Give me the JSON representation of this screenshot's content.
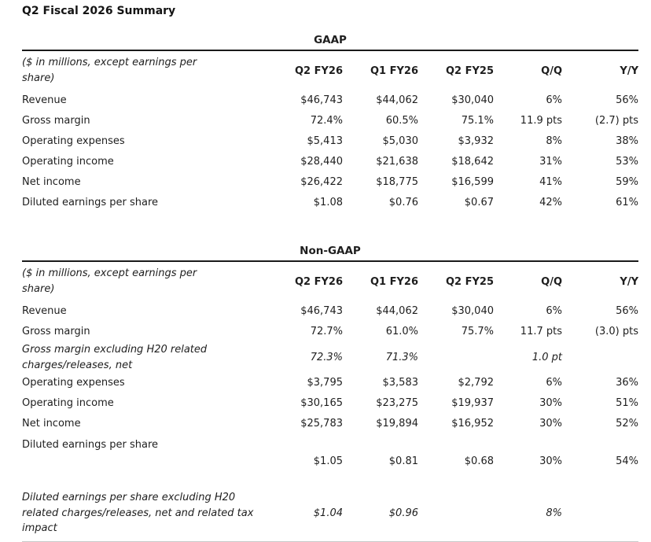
{
  "page": {
    "title": "Q2 Fiscal 2026 Summary"
  },
  "colors": {
    "text": "#1e1e1e",
    "rule": "#1a1a1a",
    "bottom_rule": "#c9c9c9"
  },
  "tables": [
    {
      "title": "GAAP",
      "note": "($ in millions, except earnings per share)",
      "columns": [
        "Q2 FY26",
        "Q1 FY26",
        "Q2 FY25",
        "Q/Q",
        "Y/Y"
      ],
      "rows": [
        {
          "label": "Revenue",
          "values": [
            "$46,743",
            "$44,062",
            "$30,040",
            "6%",
            "56%"
          ],
          "style": "normal"
        },
        {
          "label": "Gross margin",
          "values": [
            "72.4%",
            "60.5%",
            "75.1%",
            "11.9 pts",
            "(2.7) pts"
          ],
          "style": "normal"
        },
        {
          "label": "Operating expenses",
          "values": [
            "$5,413",
            "$5,030",
            "$3,932",
            "8%",
            "38%"
          ],
          "style": "normal"
        },
        {
          "label": "Operating income",
          "values": [
            "$28,440",
            "$21,638",
            "$18,642",
            "31%",
            "53%"
          ],
          "style": "normal"
        },
        {
          "label": "Net income",
          "values": [
            "$26,422",
            "$18,775",
            "$16,599",
            "41%",
            "59%"
          ],
          "style": "normal"
        },
        {
          "label": "Diluted earnings per share",
          "values": [
            "$1.08",
            "$0.76",
            "$0.67",
            "42%",
            "61%"
          ],
          "style": "normal"
        }
      ]
    },
    {
      "title": "Non-GAAP",
      "note": "($ in millions, except earnings per share)",
      "columns": [
        "Q2 FY26",
        "Q1 FY26",
        "Q2 FY25",
        "Q/Q",
        "Y/Y"
      ],
      "rows": [
        {
          "label": "Revenue",
          "values": [
            "$46,743",
            "$44,062",
            "$30,040",
            "6%",
            "56%"
          ],
          "style": "normal"
        },
        {
          "label": "Gross margin",
          "values": [
            "72.7%",
            "61.0%",
            "75.7%",
            "11.7 pts",
            "(3.0) pts"
          ],
          "style": "normal"
        },
        {
          "label": "Gross margin excluding H20 related charges/releases, net",
          "values": [
            "72.3%",
            "71.3%",
            "",
            "1.0 pt",
            ""
          ],
          "style": "italic"
        },
        {
          "label": "Operating expenses",
          "values": [
            "$3,795",
            "$3,583",
            "$2,792",
            "6%",
            "36%"
          ],
          "style": "normal"
        },
        {
          "label": "Operating income",
          "values": [
            "$30,165",
            "$23,275",
            "$19,937",
            "30%",
            "51%"
          ],
          "style": "normal"
        },
        {
          "label": "Net income",
          "values": [
            "$25,783",
            "$19,894",
            "$16,952",
            "30%",
            "52%"
          ],
          "style": "normal"
        },
        {
          "label": "Diluted earnings per share",
          "values": [
            "$1.05",
            "$0.81",
            "$0.68",
            "30%",
            "54%"
          ],
          "style": "tall"
        },
        {
          "label": "Diluted earnings per share excluding H20 related charges/releases, net and related tax impact",
          "values": [
            "$1.04",
            "$0.96",
            "",
            "8%",
            ""
          ],
          "style": "italic gap"
        }
      ]
    }
  ]
}
